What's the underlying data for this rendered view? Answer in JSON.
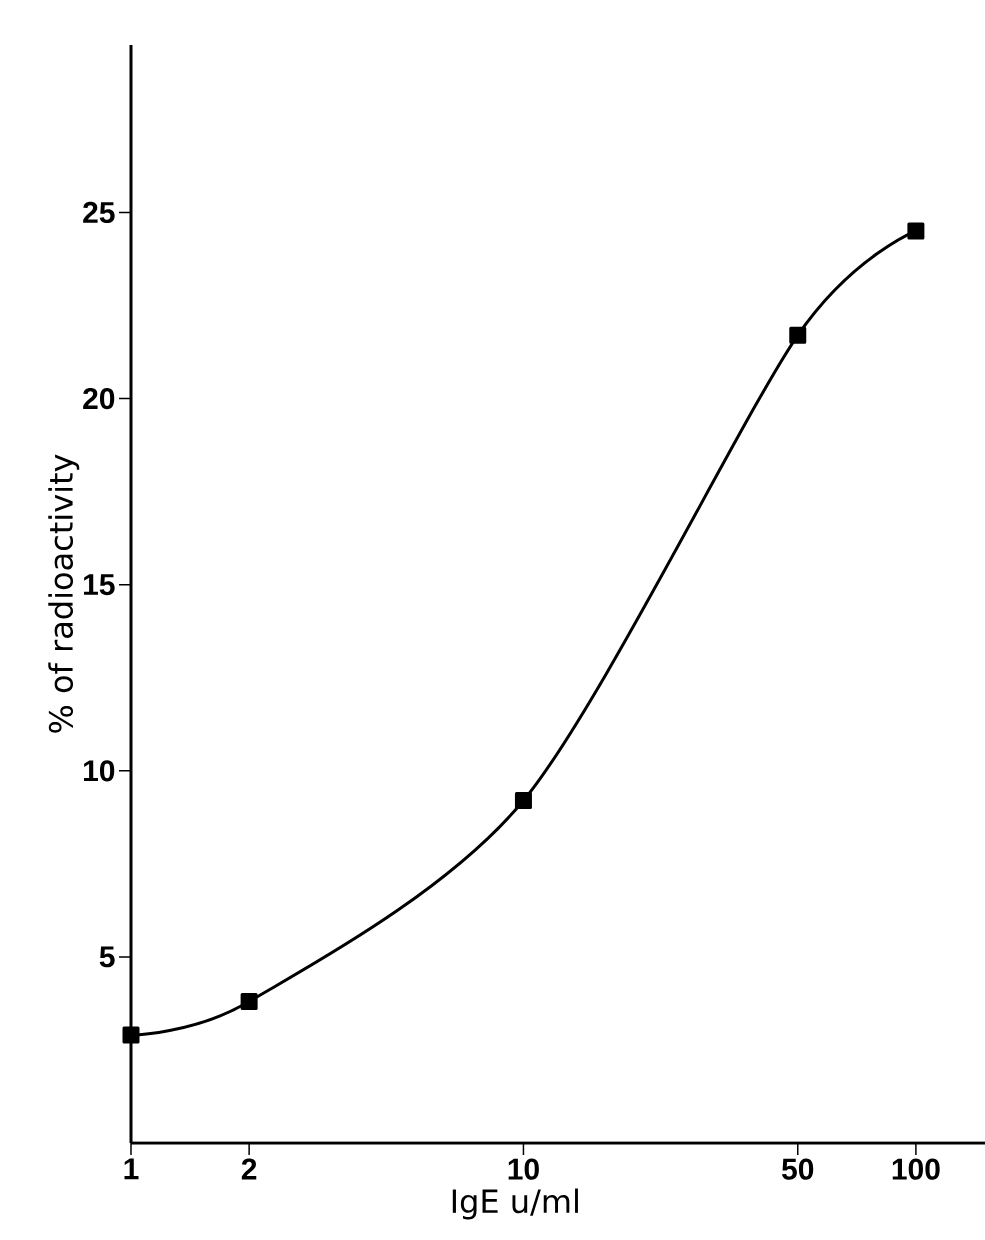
{
  "chart_data": {
    "type": "line",
    "xlabel": "IgE u/ml",
    "ylabel": "% of radioactivity",
    "x": [
      1,
      2,
      10,
      50,
      100
    ],
    "values": [
      2.9,
      3.8,
      9.2,
      21.7,
      24.5
    ],
    "color": "#000000",
    "log": "x",
    "xlim": [
      1,
      150
    ],
    "ylim": [
      0,
      29.5
    ],
    "xticks": [
      1,
      2,
      10,
      50,
      100
    ],
    "yticks": [
      5,
      10,
      15,
      20,
      25
    ],
    "marker": "square",
    "line_style": "solid"
  }
}
